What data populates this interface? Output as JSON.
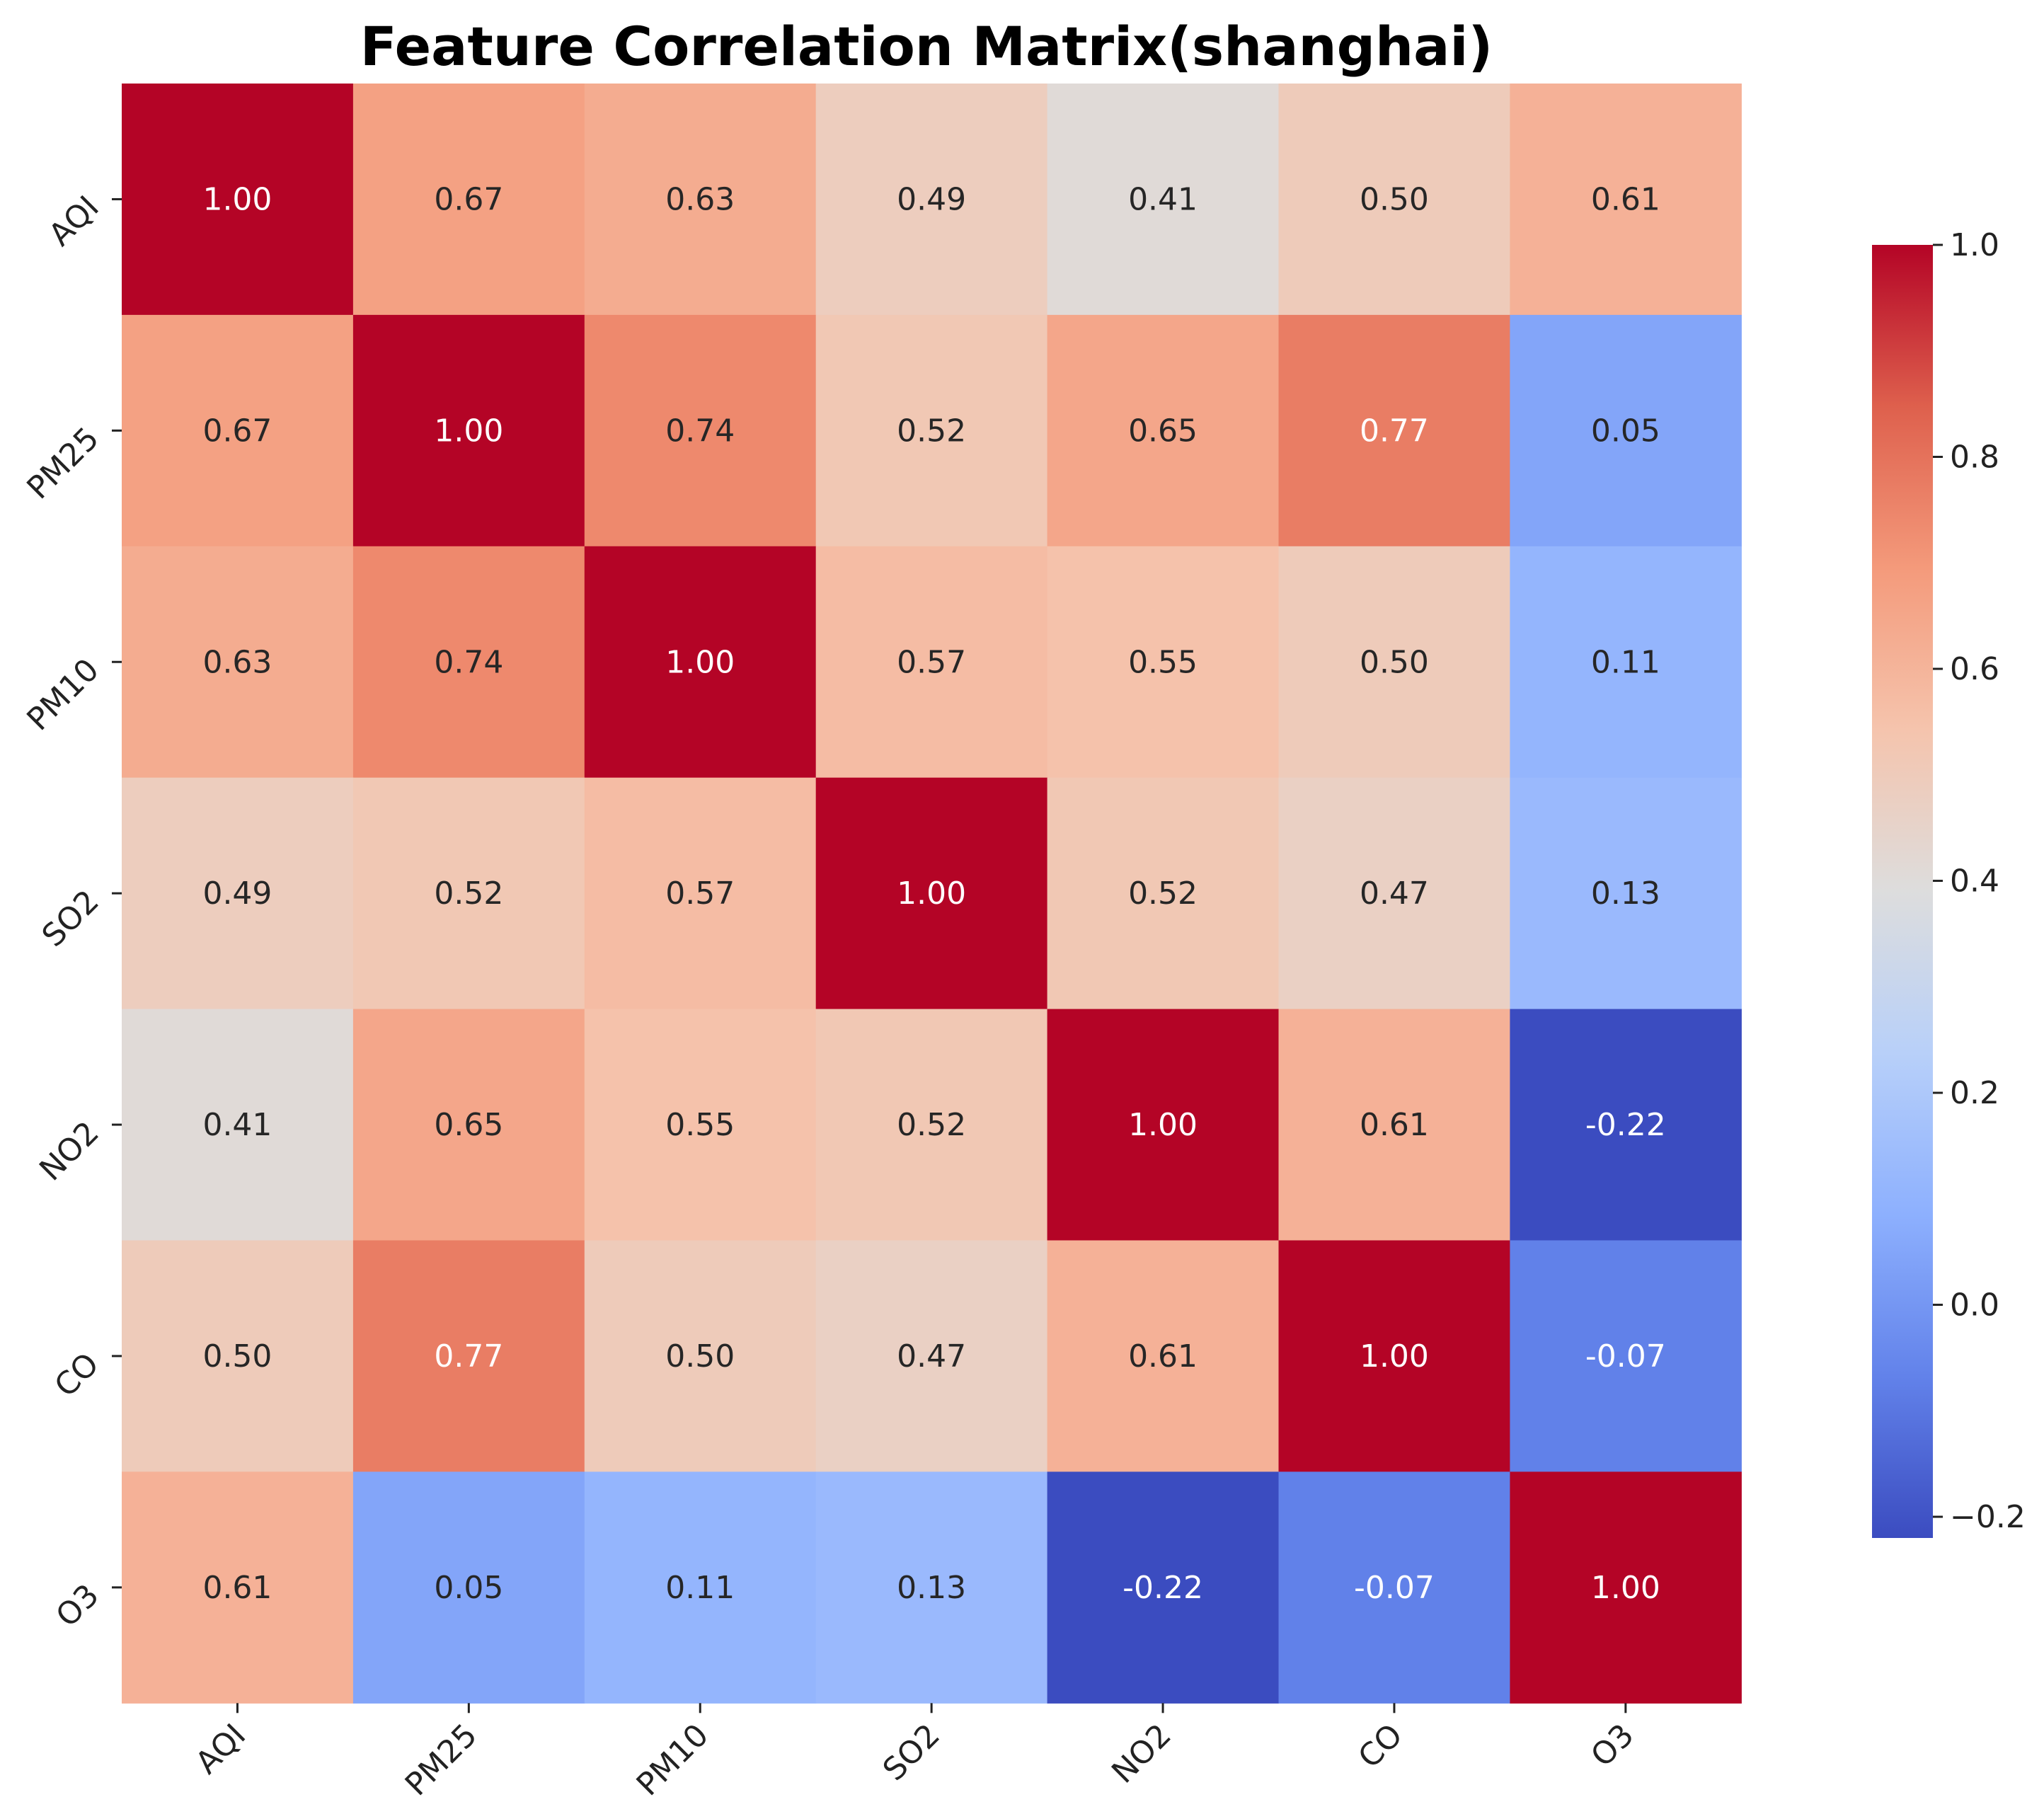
{
  "chart_data": {
    "type": "heatmap",
    "title": "Feature Correlation Matrix(shanghai)",
    "row_labels": [
      "AQI",
      "PM25",
      "PM10",
      "SO2",
      "NO2",
      "CO",
      "O3"
    ],
    "col_labels": [
      "AQI",
      "PM25",
      "PM10",
      "SO2",
      "NO2",
      "CO",
      "O3"
    ],
    "values": [
      [
        1.0,
        0.67,
        0.63,
        0.49,
        0.41,
        0.5,
        0.61
      ],
      [
        0.67,
        1.0,
        0.74,
        0.52,
        0.65,
        0.77,
        0.05
      ],
      [
        0.63,
        0.74,
        1.0,
        0.57,
        0.55,
        0.5,
        0.11
      ],
      [
        0.49,
        0.52,
        0.57,
        1.0,
        0.52,
        0.47,
        0.13
      ],
      [
        0.41,
        0.65,
        0.55,
        0.52,
        1.0,
        0.61,
        -0.22
      ],
      [
        0.5,
        0.77,
        0.5,
        0.47,
        0.61,
        1.0,
        -0.07
      ],
      [
        0.61,
        0.05,
        0.11,
        0.13,
        -0.22,
        -0.07,
        1.0
      ]
    ],
    "value_format": "0.00",
    "colormap": "coolwarm",
    "vmin": -0.22,
    "vmax": 1.0,
    "colorbar": {
      "ticks": [
        -0.2,
        0.0,
        0.2,
        0.4,
        0.6,
        0.8,
        1.0
      ],
      "tick_labels": [
        "−0.2",
        "0.0",
        "0.2",
        "0.4",
        "0.6",
        "0.8",
        "1.0"
      ],
      "placement": "right"
    },
    "xlabel": "",
    "ylabel": "",
    "grid": false
  }
}
